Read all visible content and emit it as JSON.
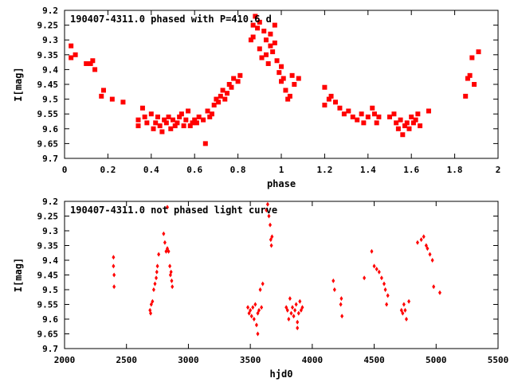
{
  "chart_data": [
    {
      "type": "scatter",
      "title": "190407-4311.0 phased with P=410.6 d",
      "xlabel": "phase",
      "ylabel": "I[mag]",
      "xlim": [
        0,
        2
      ],
      "ylim": [
        9.2,
        9.7
      ],
      "y_inverted": true,
      "grid": false,
      "marker_color": "#ff0000",
      "x_ticks": [
        0,
        0.2,
        0.4,
        0.6,
        0.8,
        1,
        1.2,
        1.4,
        1.6,
        1.8,
        2
      ],
      "x_tick_labels": [
        "0",
        "0.2",
        "0.4",
        "0.6",
        "0.8",
        "1",
        "1.2",
        "1.4",
        "1.6",
        "1.8",
        "2"
      ],
      "y_ticks": [
        9.2,
        9.25,
        9.3,
        9.35,
        9.4,
        9.45,
        9.5,
        9.55,
        9.6,
        9.65,
        9.7
      ],
      "y_tick_labels": [
        "9.2",
        "9.25",
        "9.3",
        "9.35",
        "9.4",
        "9.45",
        "9.5",
        "9.55",
        "9.6",
        "9.65",
        "9.7"
      ],
      "points": [
        [
          0.03,
          9.32
        ],
        [
          0.03,
          9.36
        ],
        [
          0.05,
          9.35
        ],
        [
          0.1,
          9.38
        ],
        [
          0.12,
          9.38
        ],
        [
          0.13,
          9.37
        ],
        [
          0.14,
          9.4
        ],
        [
          0.17,
          9.49
        ],
        [
          0.18,
          9.47
        ],
        [
          0.22,
          9.5
        ],
        [
          0.27,
          9.51
        ],
        [
          0.34,
          9.59
        ],
        [
          0.34,
          9.57
        ],
        [
          0.36,
          9.53
        ],
        [
          0.37,
          9.56
        ],
        [
          0.38,
          9.58
        ],
        [
          0.4,
          9.55
        ],
        [
          0.41,
          9.6
        ],
        [
          0.42,
          9.58
        ],
        [
          0.43,
          9.56
        ],
        [
          0.44,
          9.59
        ],
        [
          0.45,
          9.61
        ],
        [
          0.46,
          9.57
        ],
        [
          0.47,
          9.58
        ],
        [
          0.48,
          9.56
        ],
        [
          0.49,
          9.6
        ],
        [
          0.5,
          9.57
        ],
        [
          0.51,
          9.59
        ],
        [
          0.52,
          9.58
        ],
        [
          0.53,
          9.56
        ],
        [
          0.54,
          9.55
        ],
        [
          0.55,
          9.59
        ],
        [
          0.56,
          9.57
        ],
        [
          0.57,
          9.54
        ],
        [
          0.58,
          9.59
        ],
        [
          0.59,
          9.58
        ],
        [
          0.6,
          9.57
        ],
        [
          0.61,
          9.58
        ],
        [
          0.62,
          9.56
        ],
        [
          0.64,
          9.57
        ],
        [
          0.65,
          9.65
        ],
        [
          0.66,
          9.54
        ],
        [
          0.67,
          9.56
        ],
        [
          0.68,
          9.55
        ],
        [
          0.69,
          9.52
        ],
        [
          0.7,
          9.5
        ],
        [
          0.71,
          9.51
        ],
        [
          0.72,
          9.49
        ],
        [
          0.73,
          9.47
        ],
        [
          0.74,
          9.5
        ],
        [
          0.75,
          9.48
        ],
        [
          0.76,
          9.45
        ],
        [
          0.77,
          9.46
        ],
        [
          0.78,
          9.43
        ],
        [
          0.8,
          9.44
        ],
        [
          0.81,
          9.42
        ],
        [
          0.86,
          9.3
        ],
        [
          0.87,
          9.29
        ],
        [
          0.87,
          9.25
        ],
        [
          0.88,
          9.22
        ],
        [
          0.89,
          9.26
        ],
        [
          0.9,
          9.24
        ],
        [
          0.9,
          9.33
        ],
        [
          0.91,
          9.36
        ],
        [
          0.92,
          9.27
        ],
        [
          0.93,
          9.3
        ],
        [
          0.93,
          9.35
        ],
        [
          0.94,
          9.38
        ],
        [
          0.95,
          9.32
        ],
        [
          0.95,
          9.28
        ],
        [
          0.96,
          9.34
        ],
        [
          0.97,
          9.25
        ],
        [
          0.97,
          9.31
        ],
        [
          0.98,
          9.37
        ],
        [
          0.99,
          9.41
        ],
        [
          1.0,
          9.44
        ],
        [
          1.0,
          9.39
        ],
        [
          1.01,
          9.43
        ],
        [
          1.02,
          9.47
        ],
        [
          1.03,
          9.5
        ],
        [
          1.04,
          9.49
        ],
        [
          1.05,
          9.42
        ],
        [
          1.06,
          9.45
        ],
        [
          1.08,
          9.43
        ],
        [
          1.2,
          9.46
        ],
        [
          1.2,
          9.52
        ],
        [
          1.22,
          9.5
        ],
        [
          1.23,
          9.49
        ],
        [
          1.25,
          9.51
        ],
        [
          1.27,
          9.53
        ],
        [
          1.29,
          9.55
        ],
        [
          1.31,
          9.54
        ],
        [
          1.33,
          9.56
        ],
        [
          1.35,
          9.57
        ],
        [
          1.37,
          9.55
        ],
        [
          1.38,
          9.58
        ],
        [
          1.4,
          9.56
        ],
        [
          1.42,
          9.53
        ],
        [
          1.43,
          9.55
        ],
        [
          1.44,
          9.58
        ],
        [
          1.45,
          9.56
        ],
        [
          1.5,
          9.56
        ],
        [
          1.52,
          9.55
        ],
        [
          1.53,
          9.58
        ],
        [
          1.54,
          9.6
        ],
        [
          1.55,
          9.57
        ],
        [
          1.56,
          9.62
        ],
        [
          1.57,
          9.59
        ],
        [
          1.58,
          9.58
        ],
        [
          1.59,
          9.6
        ],
        [
          1.6,
          9.56
        ],
        [
          1.61,
          9.58
        ],
        [
          1.62,
          9.57
        ],
        [
          1.63,
          9.55
        ],
        [
          1.64,
          9.59
        ],
        [
          1.68,
          9.54
        ],
        [
          1.85,
          9.49
        ],
        [
          1.86,
          9.43
        ],
        [
          1.87,
          9.42
        ],
        [
          1.88,
          9.36
        ],
        [
          1.89,
          9.45
        ],
        [
          1.91,
          9.34
        ]
      ]
    },
    {
      "type": "scatter",
      "title": "190407-4311.0 not phased light curve",
      "xlabel": "hjd0",
      "ylabel": "I[mag]",
      "xlim": [
        2000,
        5500
      ],
      "ylim": [
        9.2,
        9.7
      ],
      "y_inverted": true,
      "grid": false,
      "marker_color": "#ff0000",
      "x_ticks": [
        2000,
        2500,
        3000,
        3500,
        4000,
        4500,
        5000,
        5500
      ],
      "x_tick_labels": [
        "2000",
        "2500",
        "3000",
        "3500",
        "4000",
        "4500",
        "5000",
        "5500"
      ],
      "y_ticks": [
        9.2,
        9.25,
        9.3,
        9.35,
        9.4,
        9.45,
        9.5,
        9.55,
        9.6,
        9.65,
        9.7
      ],
      "y_tick_labels": [
        "9.2",
        "9.25",
        "9.3",
        "9.35",
        "9.4",
        "9.45",
        "9.5",
        "9.55",
        "9.6",
        "9.65",
        "9.7"
      ],
      "points": [
        [
          2395,
          9.39
        ],
        [
          2395,
          9.42
        ],
        [
          2400,
          9.45
        ],
        [
          2400,
          9.49
        ],
        [
          2690,
          9.57
        ],
        [
          2695,
          9.58
        ],
        [
          2700,
          9.55
        ],
        [
          2710,
          9.54
        ],
        [
          2720,
          9.5
        ],
        [
          2730,
          9.48
        ],
        [
          2740,
          9.46
        ],
        [
          2745,
          9.44
        ],
        [
          2750,
          9.42
        ],
        [
          2760,
          9.38
        ],
        [
          2800,
          9.31
        ],
        [
          2810,
          9.34
        ],
        [
          2820,
          9.37
        ],
        [
          2830,
          9.36
        ],
        [
          2840,
          9.37
        ],
        [
          2850,
          9.42
        ],
        [
          2855,
          9.45
        ],
        [
          2860,
          9.44
        ],
        [
          2865,
          9.47
        ],
        [
          2870,
          9.49
        ],
        [
          2830,
          9.22
        ],
        [
          3480,
          9.56
        ],
        [
          3490,
          9.58
        ],
        [
          3500,
          9.57
        ],
        [
          3510,
          9.59
        ],
        [
          3520,
          9.56
        ],
        [
          3530,
          9.6
        ],
        [
          3540,
          9.55
        ],
        [
          3550,
          9.62
        ],
        [
          3560,
          9.58
        ],
        [
          3570,
          9.57
        ],
        [
          3580,
          9.5
        ],
        [
          3590,
          9.56
        ],
        [
          3600,
          9.48
        ],
        [
          3630,
          9.23
        ],
        [
          3640,
          9.21
        ],
        [
          3650,
          9.25
        ],
        [
          3660,
          9.28
        ],
        [
          3665,
          9.33
        ],
        [
          3670,
          9.35
        ],
        [
          3675,
          9.32
        ],
        [
          3560,
          9.65
        ],
        [
          3790,
          9.56
        ],
        [
          3800,
          9.57
        ],
        [
          3810,
          9.6
        ],
        [
          3820,
          9.53
        ],
        [
          3830,
          9.58
        ],
        [
          3840,
          9.56
        ],
        [
          3850,
          9.59
        ],
        [
          3860,
          9.57
        ],
        [
          3870,
          9.55
        ],
        [
          3880,
          9.61
        ],
        [
          3890,
          9.58
        ],
        [
          3900,
          9.54
        ],
        [
          3910,
          9.57
        ],
        [
          3920,
          9.56
        ],
        [
          3880,
          9.63
        ],
        [
          4170,
          9.47
        ],
        [
          4180,
          9.5
        ],
        [
          4230,
          9.55
        ],
        [
          4240,
          9.59
        ],
        [
          4235,
          9.53
        ],
        [
          4420,
          9.46
        ],
        [
          4480,
          9.37
        ],
        [
          4500,
          9.42
        ],
        [
          4520,
          9.43
        ],
        [
          4540,
          9.44
        ],
        [
          4560,
          9.46
        ],
        [
          4580,
          9.48
        ],
        [
          4590,
          9.5
        ],
        [
          4600,
          9.55
        ],
        [
          4610,
          9.52
        ],
        [
          4720,
          9.57
        ],
        [
          4730,
          9.58
        ],
        [
          4740,
          9.55
        ],
        [
          4750,
          9.57
        ],
        [
          4760,
          9.6
        ],
        [
          4780,
          9.54
        ],
        [
          4850,
          9.34
        ],
        [
          4880,
          9.33
        ],
        [
          4900,
          9.32
        ],
        [
          4920,
          9.35
        ],
        [
          4930,
          9.36
        ],
        [
          4950,
          9.38
        ],
        [
          4970,
          9.4
        ],
        [
          4980,
          9.49
        ],
        [
          5030,
          9.51
        ]
      ]
    }
  ]
}
